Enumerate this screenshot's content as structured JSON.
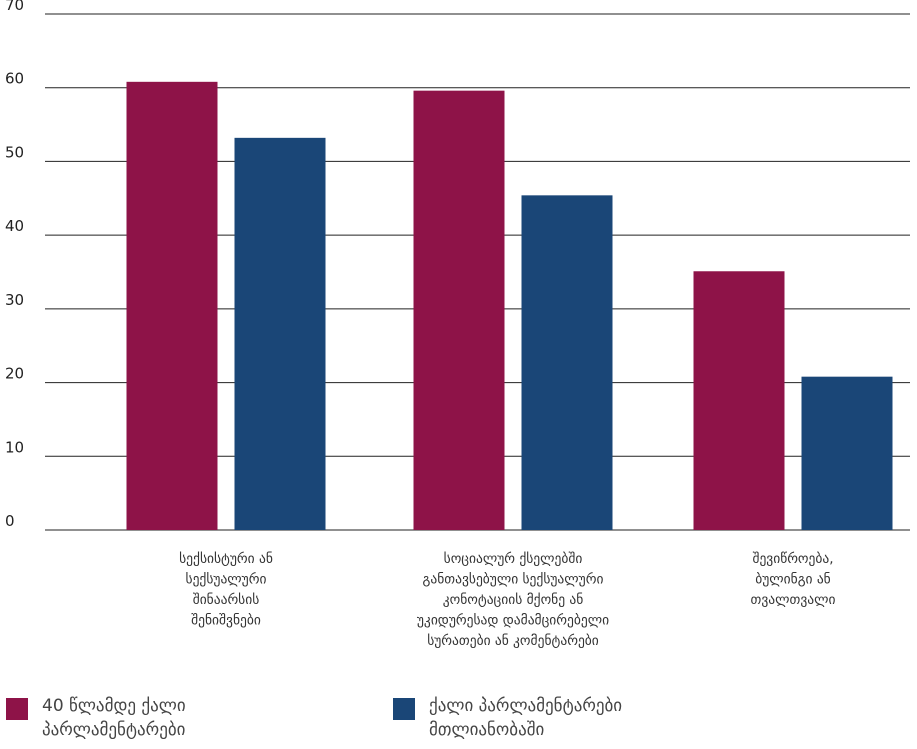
{
  "chart_data": {
    "type": "bar",
    "categories": [
      "სექსისტური ან სექსუალური შინაარსის შენიშვნები",
      "სოციალურ ქსელებში განთავსებული სექსუალური კონოტაციის მქონე ან უკიდურესად დამამცირებელი სურათები ან კომენტარები",
      "შევიწროება, ბულინგი ან თვალთვალი"
    ],
    "category_lines": [
      [
        "სექსისტური ან",
        "სექსუალური",
        "შინაარსის",
        "შენიშვნები"
      ],
      [
        "სოციალურ ქსელებში",
        "განთავსებული სექსუალური",
        "კონოტაციის მქონე ან",
        "უკიდურესად დამამცირებელი",
        "სურათები ან კომენტარები"
      ],
      [
        "შევიწროება,",
        "ბულინგი ან",
        "თვალთვალი"
      ]
    ],
    "series": [
      {
        "name": "40 წლამდე ქალი პარლამენტარები",
        "values": [
          60.8,
          59.6,
          35.1
        ],
        "color": "#8e1348"
      },
      {
        "name": "ქალი პარლამენტარები მთლიანობაში",
        "values": [
          53.2,
          45.4,
          20.8
        ],
        "color": "#1a4677"
      }
    ],
    "ylim": [
      0,
      70
    ],
    "yticks": [
      0,
      10,
      20,
      30,
      40,
      50,
      60,
      70
    ],
    "grid": true,
    "legend": "bottom"
  },
  "legend_lines": [
    [
      "40 წლამდე ქალი",
      "პარლამენტარები"
    ],
    [
      "ქალი პარლამენტარები",
      "მთლიანობაში"
    ]
  ]
}
